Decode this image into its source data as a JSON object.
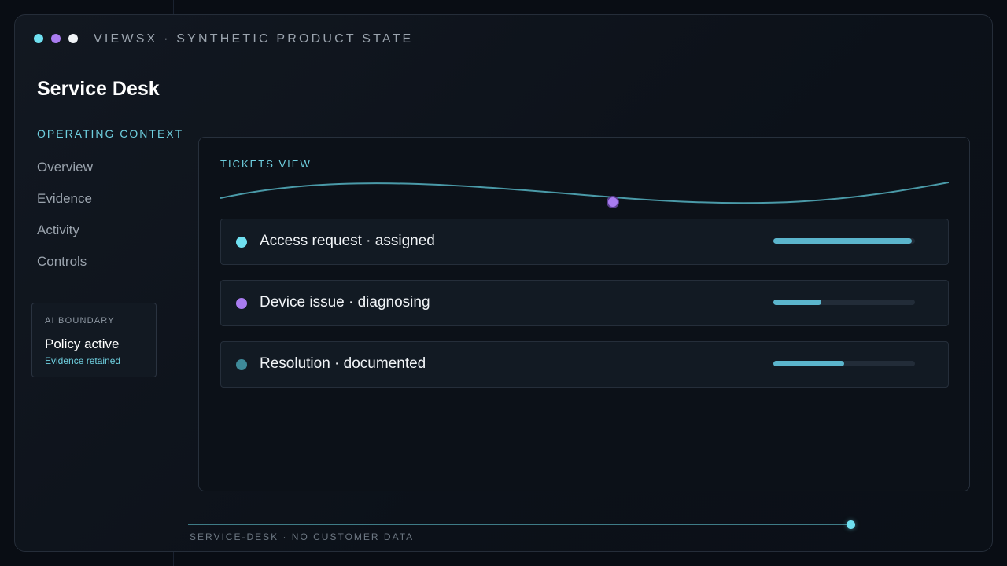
{
  "window": {
    "title": "VIEWSX · SYNTHETIC PRODUCT STATE",
    "dots": [
      "#6fe0f0",
      "#a97cf0",
      "#f1f4f7"
    ]
  },
  "page": {
    "title": "Service Desk"
  },
  "sidebar": {
    "section_label": "OPERATING CONTEXT",
    "items": [
      {
        "label": "Overview"
      },
      {
        "label": "Evidence"
      },
      {
        "label": "Activity"
      },
      {
        "label": "Controls"
      }
    ]
  },
  "ai_boundary": {
    "label": "AI BOUNDARY",
    "status": "Policy active",
    "detail": "Evidence retained"
  },
  "panel": {
    "label": "TICKETS VIEW",
    "tickets": [
      {
        "label": "Access request · assigned",
        "dot_color": "#6fe0f0",
        "progress": 0.98
      },
      {
        "label": "Device issue · diagnosing",
        "dot_color": "#a97cf0",
        "progress": 0.34
      },
      {
        "label": "Resolution · documented",
        "dot_color": "#3e8a99",
        "progress": 0.5
      }
    ]
  },
  "footer": {
    "text": "SERVICE-DESK · NO CUSTOMER DATA"
  },
  "colors": {
    "accent": "#6fd0e0",
    "accent_purple": "#a97cf0",
    "bar": "#5bb5cc"
  }
}
